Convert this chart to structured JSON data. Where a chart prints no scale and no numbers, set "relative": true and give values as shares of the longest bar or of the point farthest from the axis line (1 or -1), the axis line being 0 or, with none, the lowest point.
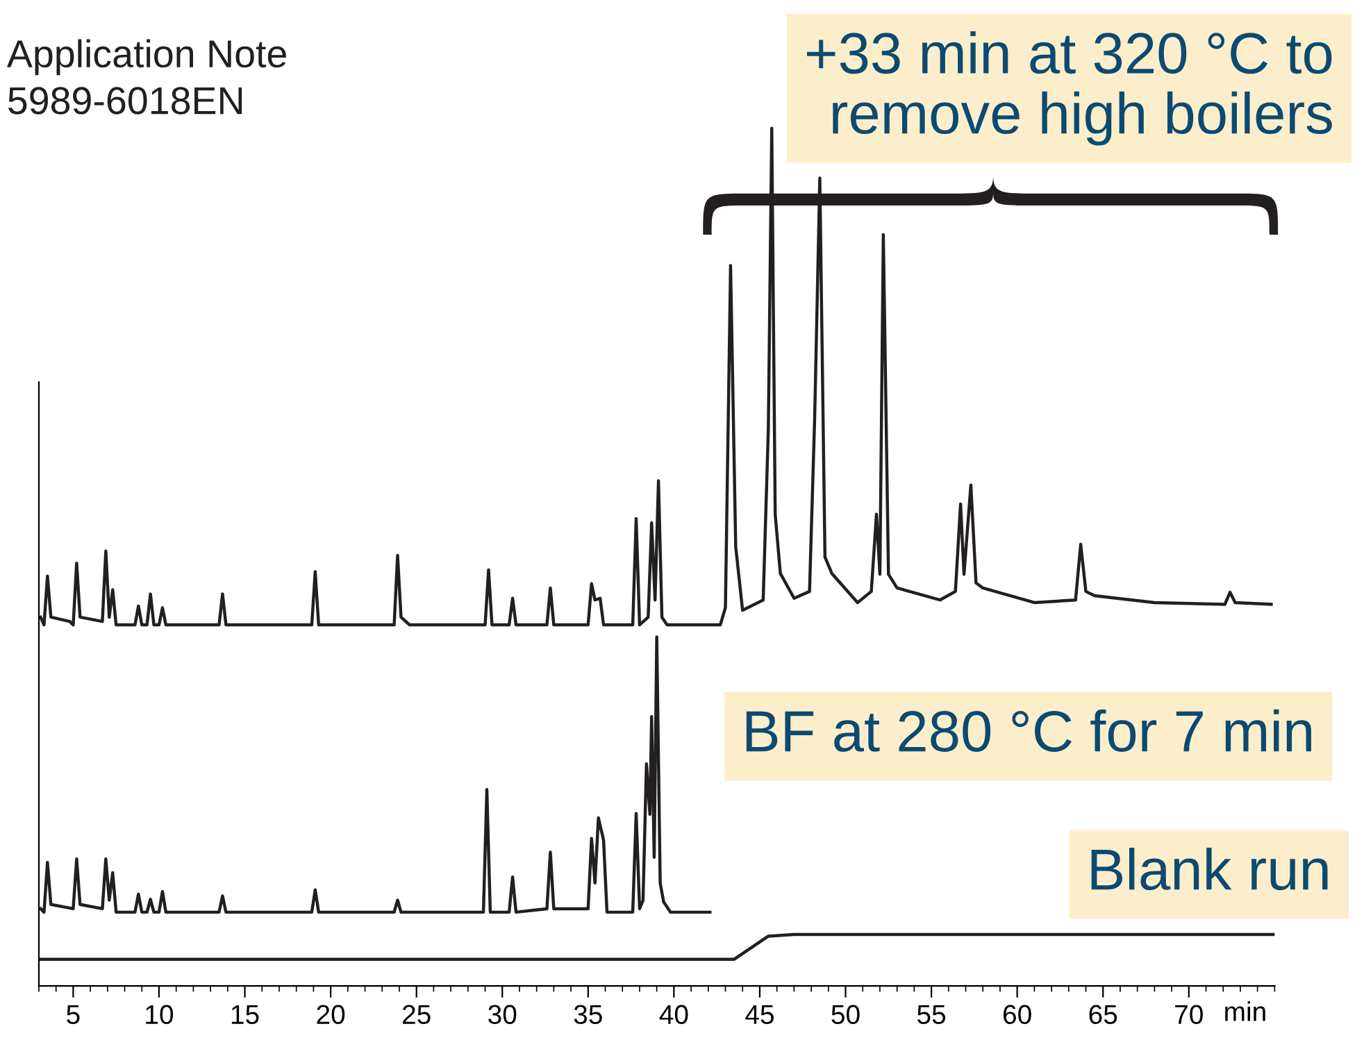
{
  "chart_data": {
    "type": "line",
    "relative": true,
    "xlabel": "min",
    "xlim": [
      3,
      75
    ],
    "xticks": [
      5,
      10,
      15,
      20,
      25,
      30,
      35,
      40,
      45,
      50,
      55,
      60,
      65,
      70
    ],
    "grid": false,
    "legend": false,
    "marker": "none",
    "line_style": "solid",
    "annotations": [
      "Application Note",
      "5989-6018EN"
    ],
    "series": [
      {
        "name": "+33 min at 320 °C to\nremove high boilers",
        "color": "#231f20",
        "x": [
          3.1,
          3.3,
          3.5,
          3.7,
          4.8,
          5.0,
          5.2,
          5.4,
          6.7,
          6.9,
          7.1,
          7.3,
          7.5,
          8.6,
          8.8,
          9.0,
          9.3,
          9.5,
          9.7,
          10.0,
          10.2,
          10.4,
          13.5,
          13.7,
          13.9,
          18.9,
          19.1,
          19.3,
          23.7,
          23.9,
          24.1,
          24.6,
          29.0,
          29.2,
          29.4,
          30.4,
          30.6,
          30.8,
          32.6,
          32.8,
          33.0,
          35.0,
          35.2,
          35.4,
          35.7,
          35.9,
          37.6,
          37.8,
          38.0,
          38.5,
          38.7,
          38.9,
          39.1,
          39.3,
          39.6,
          42.7,
          43.0,
          43.3,
          43.6,
          44.0,
          45.2,
          45.5,
          45.7,
          45.9,
          46.2,
          47.0,
          47.9,
          48.2,
          48.5,
          48.8,
          49.2,
          50.7,
          51.5,
          51.8,
          52.0,
          52.2,
          52.5,
          53.0,
          55.5,
          56.4,
          56.7,
          56.9,
          57.3,
          57.6,
          58.0,
          61.0,
          63.4,
          63.7,
          64.0,
          64.5,
          68.0,
          72.1,
          72.4,
          72.7,
          74.8
        ],
        "values": [
          0.43,
          0.421,
          0.478,
          0.43,
          0.425,
          0.421,
          0.493,
          0.43,
          0.425,
          0.507,
          0.43,
          0.462,
          0.421,
          0.421,
          0.443,
          0.421,
          0.421,
          0.457,
          0.421,
          0.421,
          0.441,
          0.421,
          0.421,
          0.457,
          0.421,
          0.421,
          0.483,
          0.421,
          0.421,
          0.502,
          0.43,
          0.421,
          0.421,
          0.485,
          0.421,
          0.421,
          0.452,
          0.421,
          0.421,
          0.464,
          0.421,
          0.421,
          0.469,
          0.45,
          0.452,
          0.421,
          0.421,
          0.545,
          0.421,
          0.43,
          0.54,
          0.45,
          0.589,
          0.43,
          0.421,
          0.421,
          0.441,
          0.84,
          0.512,
          0.438,
          0.45,
          0.649,
          1,
          0.55,
          0.481,
          0.452,
          0.46,
          0.662,
          0.942,
          0.5,
          0.481,
          0.447,
          0.46,
          0.55,
          0.48,
          0.876,
          0.48,
          0.464,
          0.45,
          0.46,
          0.562,
          0.48,
          0.584,
          0.47,
          0.464,
          0.447,
          0.45,
          0.515,
          0.46,
          0.455,
          0.447,
          0.445,
          0.459,
          0.447,
          0.445
        ]
      },
      {
        "name": "BF at 280 °C for 7 min",
        "color": "#231f20",
        "x": [
          3.1,
          3.3,
          3.5,
          3.7,
          5.0,
          5.2,
          5.4,
          6.7,
          6.9,
          7.1,
          7.3,
          7.5,
          8.6,
          8.8,
          9.0,
          9.3,
          9.5,
          9.7,
          10.0,
          10.2,
          10.4,
          13.5,
          13.7,
          13.9,
          18.9,
          19.1,
          19.3,
          23.7,
          23.9,
          24.1,
          28.9,
          29.1,
          29.3,
          30.4,
          30.6,
          30.8,
          32.6,
          32.8,
          33.0,
          35.0,
          35.2,
          35.4,
          35.6,
          35.9,
          36.1,
          37.6,
          37.8,
          38.0,
          38.2,
          38.4,
          38.6,
          38.7,
          38.85,
          39.0,
          39.2,
          39.4,
          39.8,
          42.1
        ],
        "values": [
          0.09,
          0.086,
          0.144,
          0.095,
          0.09,
          0.148,
          0.095,
          0.09,
          0.148,
          0.1,
          0.132,
          0.086,
          0.086,
          0.107,
          0.086,
          0.086,
          0.101,
          0.086,
          0.086,
          0.11,
          0.086,
          0.086,
          0.105,
          0.086,
          0.086,
          0.112,
          0.086,
          0.086,
          0.1,
          0.086,
          0.086,
          0.229,
          0.086,
          0.086,
          0.127,
          0.086,
          0.09,
          0.156,
          0.09,
          0.09,
          0.172,
          0.12,
          0.196,
          0.17,
          0.086,
          0.086,
          0.201,
          0.09,
          0.1,
          0.259,
          0.2,
          0.314,
          0.15,
          0.407,
          0.12,
          0.098,
          0.086,
          0.086
        ]
      },
      {
        "name": "Blank run",
        "color": "#231f20",
        "x": [
          3,
          43.5,
          45.5,
          47,
          75
        ],
        "values": [
          0.031,
          0.031,
          0.058,
          0.06,
          0.06
        ]
      }
    ]
  }
}
